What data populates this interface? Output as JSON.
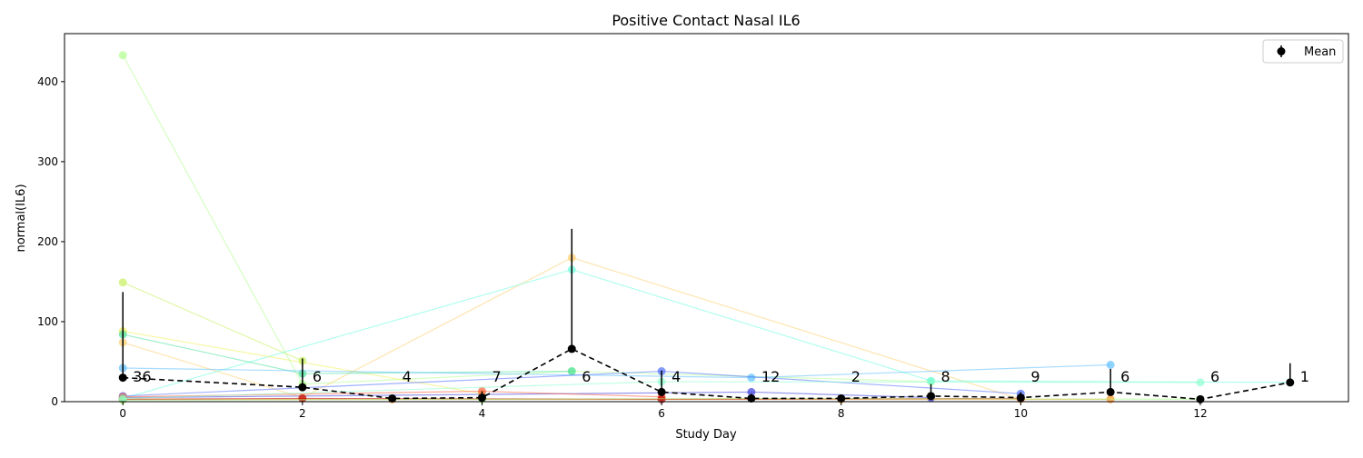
{
  "chart_data": {
    "type": "line",
    "title": "Positive Contact Nasal IL6",
    "xlabel": "Study Day",
    "ylabel": "normal(IL6)",
    "xlim": [
      -0.65,
      13.65
    ],
    "ylim": [
      0,
      460
    ],
    "x_ticks": [
      0,
      2,
      4,
      6,
      8,
      10,
      12
    ],
    "y_ticks": [
      0,
      100,
      200,
      300,
      400
    ],
    "grid": false,
    "legend": {
      "position": "top-right",
      "entries": [
        {
          "label": "Mean",
          "marker": "circle-errorbar",
          "color": "#000000"
        }
      ]
    },
    "mean_series": {
      "name": "Mean",
      "x": [
        0,
        2,
        3,
        4,
        5,
        6,
        7,
        8,
        9,
        10,
        11,
        12,
        13
      ],
      "y": [
        30,
        18,
        4,
        5,
        66,
        12,
        4,
        4,
        7,
        5,
        12,
        3,
        24
      ],
      "err_low": [
        0,
        0,
        0,
        0,
        0,
        0,
        0,
        0,
        0,
        0,
        0,
        0,
        0
      ],
      "err_high": [
        107,
        36,
        4,
        8,
        150,
        27,
        6,
        5,
        15,
        7,
        29,
        3,
        24
      ],
      "counts": [
        "36",
        "6",
        "4",
        "7",
        "6",
        "4",
        "12",
        "2",
        "8",
        "9",
        "6",
        "6",
        "1"
      ]
    },
    "subject_series": [
      {
        "color": "#b0ff90",
        "x": [
          0,
          2,
          5,
          9
        ],
        "y": [
          433,
          22,
          38,
          25
        ]
      },
      {
        "color": "#c8f060",
        "x": [
          0,
          2
        ],
        "y": [
          149,
          51
        ]
      },
      {
        "color": "#ffd070",
        "x": [
          0,
          2,
          5,
          10
        ],
        "y": [
          74,
          5,
          180,
          3
        ]
      },
      {
        "color": "#70ffe0",
        "x": [
          0,
          5,
          9,
          13
        ],
        "y": [
          4,
          165,
          26,
          24
        ]
      },
      {
        "color": "#f0f060",
        "x": [
          0,
          4
        ],
        "y": [
          88,
          10
        ]
      },
      {
        "color": "#50e0a0",
        "x": [
          0,
          2,
          5
        ],
        "y": [
          84,
          35,
          38
        ]
      },
      {
        "color": "#60c0ff",
        "x": [
          0,
          7,
          11
        ],
        "y": [
          42,
          30,
          46
        ]
      },
      {
        "color": "#5070ff",
        "x": [
          0,
          6,
          10
        ],
        "y": [
          7,
          38,
          10
        ]
      },
      {
        "color": "#4040e0",
        "x": [
          0,
          7,
          9
        ],
        "y": [
          5,
          12,
          5
        ]
      },
      {
        "color": "#ff6040",
        "x": [
          0,
          4,
          6
        ],
        "y": [
          6,
          13,
          6
        ]
      },
      {
        "color": "#ff9020",
        "x": [
          0,
          3,
          8,
          11
        ],
        "y": [
          3,
          3,
          3,
          3
        ]
      },
      {
        "color": "#c00000",
        "x": [
          0,
          2,
          6,
          10
        ],
        "y": [
          3,
          4,
          3,
          4
        ]
      },
      {
        "color": "#a0ff80",
        "x": [
          0,
          4,
          7,
          12
        ],
        "y": [
          2,
          3,
          4,
          3
        ]
      },
      {
        "color": "#90ffd0",
        "x": [
          0,
          6,
          12
        ],
        "y": [
          4,
          25,
          24
        ]
      }
    ]
  }
}
